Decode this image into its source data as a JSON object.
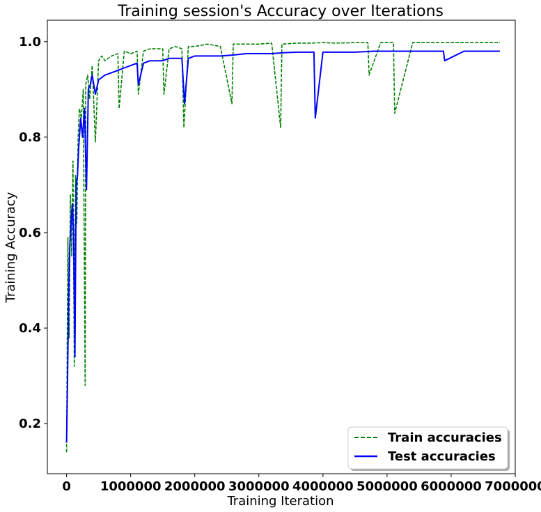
{
  "chart_data": {
    "type": "line",
    "title": "Training session's Accuracy over Iterations",
    "xlabel": "Training Iteration",
    "ylabel": "Training Accuracy",
    "xlim": [
      -300000,
      7000000
    ],
    "ylim": [
      0.095,
      1.045
    ],
    "xticks": [
      0,
      1000000,
      2000000,
      3000000,
      4000000,
      5000000,
      6000000,
      7000000
    ],
    "yticks": [
      0.2,
      0.4,
      0.6,
      0.8,
      1.0
    ],
    "xtick_labels": [
      "0",
      "1000000",
      "2000000",
      "3000000",
      "4000000",
      "5000000",
      "6000000",
      "7000000"
    ],
    "ytick_labels": [
      "0.2",
      "0.4",
      "0.6",
      "0.8",
      "1.0"
    ],
    "grid": false,
    "legend_position": "bottom-right",
    "series": [
      {
        "name": "Train accuracies",
        "color": "#008000",
        "style": "dashed",
        "x": [
          0,
          20000,
          40000,
          60000,
          80000,
          100000,
          120000,
          140000,
          160000,
          180000,
          200000,
          230000,
          260000,
          290000,
          300000,
          330000,
          360000,
          400000,
          450000,
          500000,
          550000,
          600000,
          700000,
          800000,
          820000,
          900000,
          1000000,
          1100000,
          1120000,
          1200000,
          1300000,
          1400000,
          1500000,
          1520000,
          1600000,
          1700000,
          1800000,
          1830000,
          1900000,
          2000000,
          2200000,
          2400000,
          2580000,
          2600000,
          2800000,
          3000000,
          3200000,
          3340000,
          3360000,
          3600000,
          3800000,
          4000000,
          4200000,
          4500000,
          4700000,
          4720000,
          4900000,
          5100000,
          5120000,
          5400000,
          5800000,
          6200000,
          6500000,
          6760000
        ],
        "y": [
          0.14,
          0.59,
          0.38,
          0.68,
          0.55,
          0.75,
          0.32,
          0.72,
          0.62,
          0.8,
          0.86,
          0.84,
          0.9,
          0.28,
          0.91,
          0.93,
          0.88,
          0.95,
          0.79,
          0.96,
          0.97,
          0.96,
          0.97,
          0.975,
          0.86,
          0.98,
          0.975,
          0.98,
          0.89,
          0.98,
          0.985,
          0.985,
          0.985,
          0.89,
          0.985,
          0.99,
          0.985,
          0.82,
          0.99,
          0.99,
          0.995,
          0.99,
          0.87,
          0.995,
          0.995,
          0.995,
          0.997,
          0.82,
          0.995,
          0.997,
          0.997,
          0.998,
          0.997,
          0.998,
          0.998,
          0.93,
          0.998,
          0.998,
          0.85,
          0.998,
          0.998,
          0.998,
          0.998,
          0.998
        ]
      },
      {
        "name": "Test accuracies",
        "color": "#0000ff",
        "style": "solid",
        "x": [
          0,
          15000,
          30000,
          50000,
          70000,
          90000,
          110000,
          130000,
          150000,
          170000,
          190000,
          220000,
          250000,
          280000,
          310000,
          340000,
          370000,
          400000,
          450000,
          500000,
          600000,
          700000,
          800000,
          900000,
          1000000,
          1100000,
          1120000,
          1200000,
          1300000,
          1400000,
          1500000,
          1600000,
          1800000,
          1840000,
          1900000,
          2000000,
          2200000,
          2400000,
          2600000,
          2800000,
          3000000,
          3200000,
          3400000,
          3600000,
          3860000,
          3880000,
          4000000,
          4200000,
          4500000,
          4800000,
          5000000,
          5300000,
          5600000,
          5880000,
          5900000,
          6200000,
          6500000,
          6760000
        ],
        "y": [
          0.16,
          0.29,
          0.45,
          0.57,
          0.62,
          0.66,
          0.6,
          0.34,
          0.7,
          0.72,
          0.78,
          0.84,
          0.8,
          0.86,
          0.69,
          0.9,
          0.91,
          0.93,
          0.89,
          0.92,
          0.93,
          0.935,
          0.94,
          0.945,
          0.95,
          0.955,
          0.91,
          0.955,
          0.96,
          0.96,
          0.96,
          0.965,
          0.965,
          0.87,
          0.965,
          0.97,
          0.97,
          0.97,
          0.972,
          0.975,
          0.975,
          0.975,
          0.977,
          0.978,
          0.978,
          0.84,
          0.978,
          0.978,
          0.978,
          0.98,
          0.98,
          0.98,
          0.98,
          0.98,
          0.96,
          0.98,
          0.98,
          0.98
        ]
      }
    ]
  }
}
